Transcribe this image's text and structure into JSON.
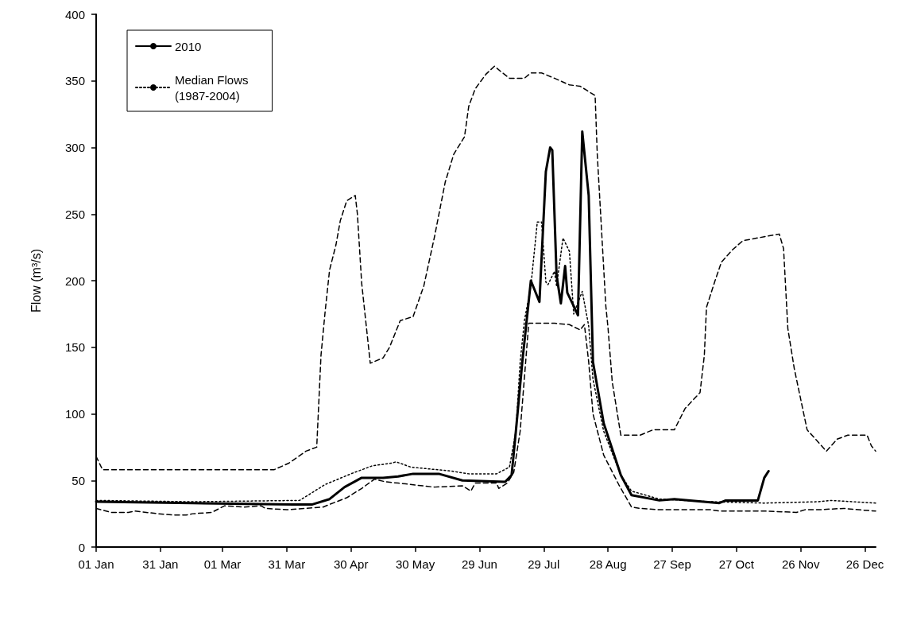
{
  "chart_data": {
    "type": "line",
    "ylabel": "Flow (m³/s)",
    "legend": "top left",
    "grid": false,
    "marker": "none",
    "xlim": [
      "--01-01",
      "--12-31"
    ],
    "ylim": [
      0,
      400
    ],
    "yticks": [
      0,
      50,
      100,
      150,
      200,
      250,
      300,
      350,
      400
    ],
    "xticks": [
      {
        "value": "--01-01",
        "label": "01 Jan"
      },
      {
        "value": "--01-31",
        "label": "31 Jan"
      },
      {
        "value": "--03-01",
        "label": "01 Mar"
      },
      {
        "value": "--03-31",
        "label": "31 Mar"
      },
      {
        "value": "--04-30",
        "label": "30 Apr"
      },
      {
        "value": "--05-30",
        "label": "30 May"
      },
      {
        "value": "--06-29",
        "label": "29 Jun"
      },
      {
        "value": "--07-29",
        "label": "29 Jul"
      },
      {
        "value": "--08-28",
        "label": "28 Aug"
      },
      {
        "value": "--09-27",
        "label": "27 Sep"
      },
      {
        "value": "--10-27",
        "label": "27 Oct"
      },
      {
        "value": "--11-26",
        "label": "26 Nov"
      },
      {
        "value": "--12-26",
        "label": "26 Dec"
      }
    ],
    "series": [
      {
        "name": "2010",
        "color": "#000000",
        "line_style": "solid",
        "x": [
          "--01-01",
          "--02-15",
          "--04-03",
          "--04-12",
          "--04-20",
          "--04-27",
          "--05-05",
          "--05-15",
          "--05-22",
          "--05-29",
          "--06-10",
          "--06-21",
          "--07-11",
          "--07-14",
          "--07-16",
          "--07-19",
          "--07-23",
          "--07-27",
          "--07-30",
          "--08-01",
          "--08-02",
          "--08-04",
          "--08-06",
          "--08-08",
          "--08-09",
          "--08-12",
          "--08-14",
          "--08-16",
          "--08-19",
          "--08-21",
          "--08-26",
          "--09-03",
          "--09-08",
          "--09-21",
          "--09-28",
          "--10-19",
          "--10-22",
          "--11-06",
          "--11-09",
          "--11-11"
        ],
        "values": [
          34,
          33,
          32,
          32,
          36,
          45,
          52,
          52,
          53,
          55,
          55,
          50,
          49,
          54,
          87,
          139,
          200,
          184,
          282,
          300,
          298,
          204,
          183,
          211,
          191,
          181,
          174,
          312,
          264,
          139,
          93,
          54,
          39,
          35,
          36,
          33,
          35,
          35,
          52,
          57
        ]
      },
      {
        "name": "Median Flows\n(1987-2004)",
        "color": "#000000",
        "line_style": "dotted",
        "x": [
          "--01-01",
          "--02-15",
          "--04-06",
          "--04-11",
          "--04-18",
          "--04-30",
          "--05-10",
          "--05-19",
          "--05-21",
          "--05-28",
          "--06-16",
          "--06-24",
          "--07-07",
          "--07-13",
          "--07-16",
          "--07-18",
          "--07-20",
          "--07-23",
          "--07-26",
          "--07-28",
          "--07-30",
          "--07-31",
          "--08-03",
          "--08-04",
          "--08-07",
          "--08-10",
          "--08-12",
          "--08-16",
          "--08-19",
          "--08-21",
          "--08-26",
          "--09-03",
          "--09-08",
          "--09-21",
          "--10-15",
          "--11-09",
          "--12-04",
          "--12-10",
          "--12-31"
        ],
        "values": [
          35,
          34,
          35,
          40,
          47,
          55,
          61,
          63,
          64,
          60,
          57,
          55,
          55,
          60,
          87,
          139,
          170,
          196,
          244,
          244,
          199,
          197,
          207,
          196,
          232,
          222,
          175,
          192,
          166,
          126,
          87,
          54,
          42,
          36,
          34,
          33,
          34,
          35,
          33
        ]
      },
      {
        "color": "#000000",
        "line_style": "dashed",
        "x": [
          "--01-01",
          "--01-04",
          "--03-16",
          "--03-25",
          "--04-01",
          "--04-09",
          "--04-14",
          "--04-16",
          "--04-18",
          "--04-20",
          "--04-23",
          "--04-25",
          "--04-28",
          "--05-02",
          "--05-03",
          "--05-05",
          "--05-09",
          "--05-15",
          "--05-18",
          "--05-23",
          "--05-29",
          "--06-03",
          "--06-08",
          "--06-13",
          "--06-17",
          "--06-22",
          "--06-24",
          "--06-27",
          "--07-02",
          "--07-06",
          "--07-09",
          "--07-13",
          "--07-20",
          "--07-23",
          "--07-28",
          "--08-03",
          "--08-10",
          "--08-15",
          "--08-18",
          "--08-22",
          "--08-23",
          "--08-27",
          "--08-28",
          "--08-30",
          "--09-03",
          "--09-12",
          "--09-18",
          "--09-28",
          "--10-03",
          "--10-10",
          "--10-12",
          "--10-13",
          "--10-17",
          "--10-20",
          "--10-25",
          "--10-30",
          "--11-09",
          "--11-16",
          "--11-18",
          "--11-20",
          "--11-23",
          "--11-29",
          "--12-08",
          "--12-13",
          "--12-18",
          "--12-27",
          "--12-29",
          "--12-31"
        ],
        "values": [
          68,
          58,
          58,
          58,
          63,
          72,
          75,
          144,
          178,
          208,
          227,
          245,
          260,
          264,
          250,
          198,
          138,
          142,
          150,
          170,
          173,
          196,
          233,
          274,
          295,
          308,
          331,
          344,
          355,
          361,
          357,
          352,
          352,
          356,
          356,
          352,
          347,
          346,
          343,
          339,
          295,
          181,
          165,
          124,
          84,
          84,
          88,
          88,
          104,
          116,
          144,
          180,
          200,
          214,
          223,
          230,
          233,
          235,
          224,
          164,
          134,
          88,
          72,
          81,
          84,
          84,
          76,
          72
        ]
      },
      {
        "color": "#000000",
        "line_style": "dashed",
        "x": [
          "--01-01",
          "--01-08",
          "--01-16",
          "--01-19",
          "--01-30",
          "--02-06",
          "--02-12",
          "--02-15",
          "--02-24",
          "--03-02",
          "--03-11",
          "--03-19",
          "--03-21",
          "--03-31",
          "--04-17",
          "--04-20",
          "--04-28",
          "--05-05",
          "--05-11",
          "--05-16",
          "--05-22",
          "--06-08",
          "--06-21",
          "--06-25",
          "--06-27",
          "--07-07",
          "--07-08",
          "--07-12",
          "--07-15",
          "--07-18",
          "--07-22",
          "--07-27",
          "--08-03",
          "--08-10",
          "--08-15",
          "--08-17",
          "--08-19",
          "--08-21",
          "--08-26",
          "--09-02",
          "--09-08",
          "--09-12",
          "--09-21",
          "--10-15",
          "--10-19",
          "--11-09",
          "--11-24",
          "--11-28",
          "--12-04",
          "--12-16",
          "--12-23",
          "--12-31"
        ],
        "values": [
          29,
          26,
          26,
          27,
          25,
          24,
          24,
          25,
          26,
          31,
          30,
          31,
          29,
          28,
          30,
          32,
          37,
          44,
          51,
          49,
          48,
          45,
          46,
          42,
          48,
          48,
          44,
          48,
          56,
          87,
          168,
          168,
          168,
          167,
          163,
          167,
          139,
          100,
          69,
          47,
          30,
          29,
          28,
          28,
          27,
          27,
          26,
          28,
          28,
          29,
          28,
          27
        ]
      }
    ]
  }
}
